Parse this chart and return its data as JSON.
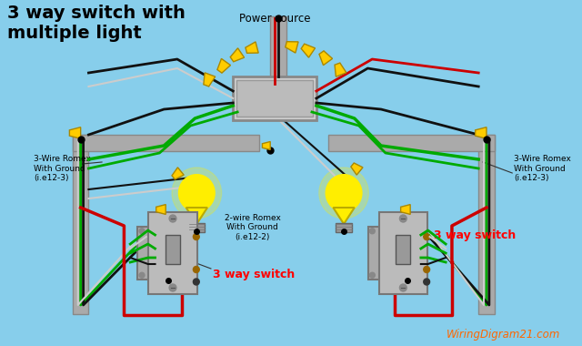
{
  "bg_color": "#87CEEB",
  "title": "3 way switch with\nmultiple light",
  "title_fontsize": 14,
  "title_color": "#000000",
  "watermark": "WiringDigram21.com",
  "watermark_color": "#FF6600",
  "power_source_label": "Power source",
  "label_3wire_left": "3-Wire Romex\nWith Ground\n(i.e12-3)",
  "label_2wire": "2-wire Romex\nWith Ground\n(i.e12-2)",
  "label_3wire_right": "3-Wire Romex\nWith Ground\n(i.e12-3)",
  "label_switch_left": "3 way switch",
  "label_switch_right": "3 way switch",
  "switch_label_color": "#FF0000",
  "wire_black": "#111111",
  "wire_red": "#CC0000",
  "wire_green": "#00AA00",
  "wire_white": "#CCCCCC",
  "wire_gray": "#AAAAAA",
  "box_color": "#BBBBBB",
  "bulb_yellow": "#FFEE00",
  "connector_color": "#FFCC00",
  "connector_edge": "#AA8800"
}
